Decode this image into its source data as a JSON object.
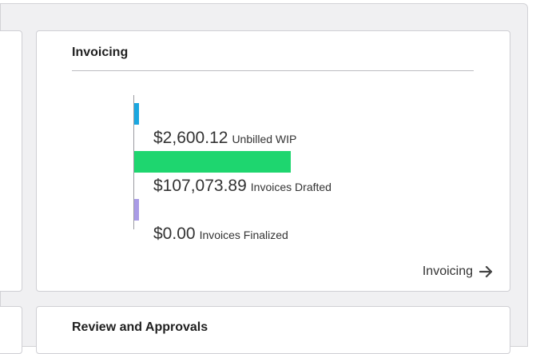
{
  "invoicing_card": {
    "title": "Invoicing",
    "link_label": "Invoicing",
    "link_icon": "arrow-right-icon"
  },
  "review_card": {
    "title": "Review and Approvals"
  },
  "chart_data": {
    "type": "bar",
    "orientation": "horizontal",
    "categories": [
      "Unbilled WIP",
      "Invoices Drafted",
      "Invoices Finalized"
    ],
    "values": [
      2600.12,
      107073.89,
      0.0
    ],
    "display_values": [
      "$2,600.12",
      "$107,073.89",
      "$0.00"
    ],
    "colors": [
      "#1aa7e0",
      "#1ed66f",
      "#a99be6"
    ],
    "grid": false,
    "legend": "none"
  }
}
